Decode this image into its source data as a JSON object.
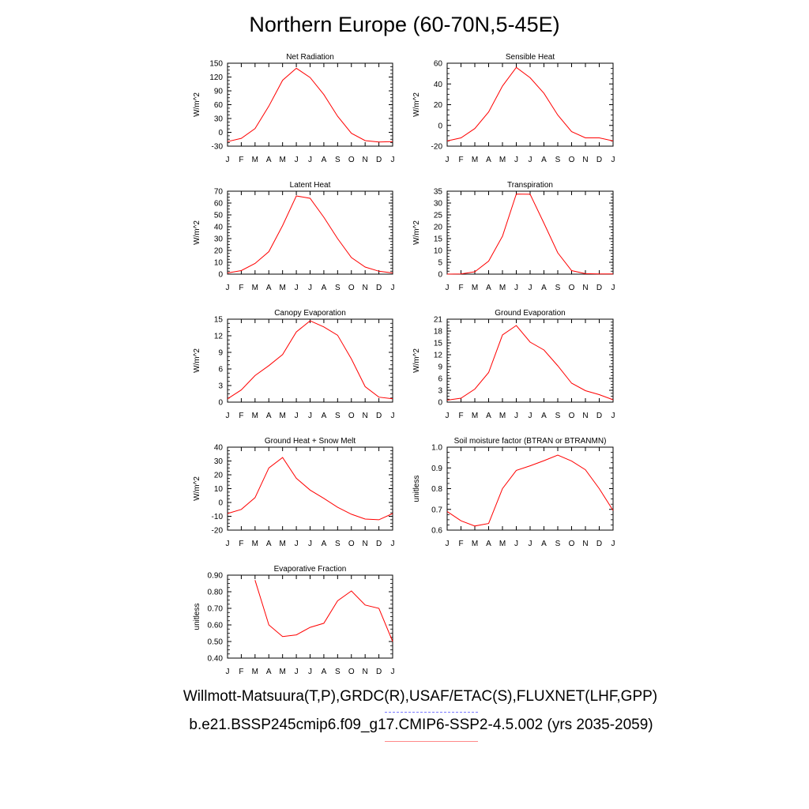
{
  "figure": {
    "title": "Northern Europe (60-70N,5-45E)",
    "legend": {
      "observations_label": "Willmott-Matsuura(T,P),GRDC(R),USAF/ETAC(S),FLUXNET(LHF,GPP)",
      "model_label": "b.e21.BSSP245cmip6.f09_g17.CMIP6-SSP2-4.5.002 (yrs 2035-2059)",
      "observations_color": "#0000ff",
      "model_color": "#ff0000"
    }
  },
  "chart_data": [
    {
      "type": "line",
      "title": "Net Radiation",
      "ylabel": "W/m^2",
      "x": [
        "J",
        "F",
        "M",
        "A",
        "M",
        "J",
        "J",
        "A",
        "S",
        "O",
        "N",
        "D",
        "J"
      ],
      "ylim": [
        -30,
        150
      ],
      "yticks": [
        -30,
        0,
        30,
        60,
        90,
        120,
        150
      ],
      "ytick_labels": [
        "-30",
        "0",
        "30",
        "60",
        "90",
        "120",
        "150"
      ],
      "series": [
        {
          "color": "#ff0000",
          "values": [
            -20,
            -13,
            8,
            57,
            113,
            139,
            119,
            82,
            35,
            -2,
            -18,
            -21,
            -20
          ]
        }
      ]
    },
    {
      "type": "line",
      "title": "Sensible Heat",
      "ylabel": "W/m^2",
      "x": [
        "J",
        "F",
        "M",
        "A",
        "M",
        "J",
        "J",
        "A",
        "S",
        "O",
        "N",
        "D",
        "J"
      ],
      "ylim": [
        -20,
        60
      ],
      "yticks": [
        -20,
        0,
        20,
        40,
        60
      ],
      "ytick_labels": [
        "-20",
        "0",
        "20",
        "40",
        "60"
      ],
      "series": [
        {
          "color": "#ff0000",
          "values": [
            -15,
            -12,
            -3,
            13,
            38,
            56,
            46,
            31,
            10,
            -6,
            -12,
            -12,
            -15
          ]
        }
      ]
    },
    {
      "type": "line",
      "title": "Latent Heat",
      "ylabel": "W/m^2",
      "x": [
        "J",
        "F",
        "M",
        "A",
        "M",
        "J",
        "J",
        "A",
        "S",
        "O",
        "N",
        "D",
        "J"
      ],
      "ylim": [
        0,
        70
      ],
      "yticks": [
        0,
        10,
        20,
        30,
        40,
        50,
        60,
        70
      ],
      "ytick_labels": [
        "0",
        "10",
        "20",
        "30",
        "40",
        "50",
        "60",
        "70"
      ],
      "series": [
        {
          "color": "#ff0000",
          "values": [
            1,
            3,
            9,
            19,
            41,
            66,
            64,
            48,
            30,
            14,
            6,
            2.5,
            1
          ]
        }
      ]
    },
    {
      "type": "line",
      "title": "Transpiration",
      "ylabel": "W/m^2",
      "x": [
        "J",
        "F",
        "M",
        "A",
        "M",
        "J",
        "J",
        "A",
        "S",
        "O",
        "N",
        "D",
        "J"
      ],
      "ylim": [
        0,
        35
      ],
      "yticks": [
        0,
        5,
        10,
        15,
        20,
        25,
        30,
        35
      ],
      "ytick_labels": [
        "0",
        "5",
        "10",
        "15",
        "20",
        "25",
        "30",
        "35"
      ],
      "series": [
        {
          "color": "#ff0000",
          "values": [
            0,
            0.1,
            1,
            5.5,
            16,
            33.8,
            33.7,
            21.5,
            9,
            1.5,
            0.2,
            0.1,
            0.1
          ]
        }
      ]
    },
    {
      "type": "line",
      "title": "Canopy Evaporation",
      "ylabel": "W/m^2",
      "x": [
        "J",
        "F",
        "M",
        "A",
        "M",
        "J",
        "J",
        "A",
        "S",
        "O",
        "N",
        "D",
        "J"
      ],
      "ylim": [
        0,
        15
      ],
      "yticks": [
        0,
        3,
        6,
        9,
        12,
        15
      ],
      "ytick_labels": [
        "0",
        "3",
        "6",
        "9",
        "12",
        "15"
      ],
      "series": [
        {
          "color": "#ff0000",
          "values": [
            0.6,
            2.2,
            4.8,
            6.6,
            8.6,
            12.7,
            14.7,
            13.6,
            12.1,
            7.8,
            2.8,
            0.9,
            0.6
          ]
        }
      ]
    },
    {
      "type": "line",
      "title": "Ground Evaporation",
      "ylabel": "W/m^2",
      "x": [
        "J",
        "F",
        "M",
        "A",
        "M",
        "J",
        "J",
        "A",
        "S",
        "O",
        "N",
        "D",
        "J"
      ],
      "ylim": [
        0,
        21
      ],
      "yticks": [
        0,
        3,
        6,
        9,
        12,
        15,
        18,
        21
      ],
      "ytick_labels": [
        "0",
        "3",
        "6",
        "9",
        "12",
        "15",
        "18",
        "21"
      ],
      "series": [
        {
          "color": "#ff0000",
          "values": [
            0.5,
            1,
            3.3,
            7.5,
            17,
            19.4,
            15.2,
            13.2,
            9.2,
            4.8,
            2.9,
            1.9,
            0.6
          ]
        }
      ]
    },
    {
      "type": "line",
      "title": "Ground Heat + Snow Melt",
      "ylabel": "W/m^2",
      "x": [
        "J",
        "F",
        "M",
        "A",
        "M",
        "J",
        "J",
        "A",
        "S",
        "O",
        "N",
        "D",
        "J"
      ],
      "ylim": [
        -20,
        40
      ],
      "yticks": [
        -20,
        -10,
        0,
        10,
        20,
        30,
        40
      ],
      "ytick_labels": [
        "-20",
        "-10",
        "0",
        "10",
        "20",
        "30",
        "40"
      ],
      "series": [
        {
          "color": "#ff0000",
          "values": [
            -8,
            -5,
            3.5,
            25,
            32.5,
            17.5,
            9,
            3,
            -3.5,
            -8.5,
            -12,
            -12.5,
            -8
          ]
        }
      ]
    },
    {
      "type": "line",
      "title": "Soil moisture factor (BTRAN or BTRANMN)",
      "ylabel": "unitless",
      "x": [
        "J",
        "F",
        "M",
        "A",
        "M",
        "J",
        "J",
        "A",
        "S",
        "O",
        "N",
        "D",
        "J"
      ],
      "ylim": [
        0.6,
        1.0
      ],
      "yticks": [
        0.6,
        0.7,
        0.8,
        0.9,
        1.0
      ],
      "ytick_labels": [
        "0.6",
        "0.7",
        "0.8",
        "0.9",
        "1.0"
      ],
      "series": [
        {
          "color": "#ff0000",
          "values": [
            0.69,
            0.645,
            0.62,
            0.632,
            0.8,
            0.888,
            0.91,
            0.935,
            0.962,
            0.933,
            0.891,
            0.8,
            0.695
          ]
        }
      ]
    },
    {
      "type": "line",
      "title": "Evaporative Fraction",
      "ylabel": "unitless",
      "x": [
        "J",
        "F",
        "M",
        "A",
        "M",
        "J",
        "J",
        "A",
        "S",
        "O",
        "N",
        "D",
        "J"
      ],
      "ylim": [
        0.4,
        0.9
      ],
      "yticks": [
        0.4,
        0.5,
        0.6,
        0.7,
        0.8,
        0.9
      ],
      "ytick_labels": [
        "0.40",
        "0.50",
        "0.60",
        "0.70",
        "0.80",
        "0.90"
      ],
      "series": [
        {
          "color": "#ff0000",
          "values": [
            null,
            null,
            0.87,
            0.6,
            0.53,
            0.54,
            0.585,
            0.61,
            0.745,
            0.805,
            0.72,
            0.7,
            0.5
          ]
        }
      ]
    }
  ]
}
